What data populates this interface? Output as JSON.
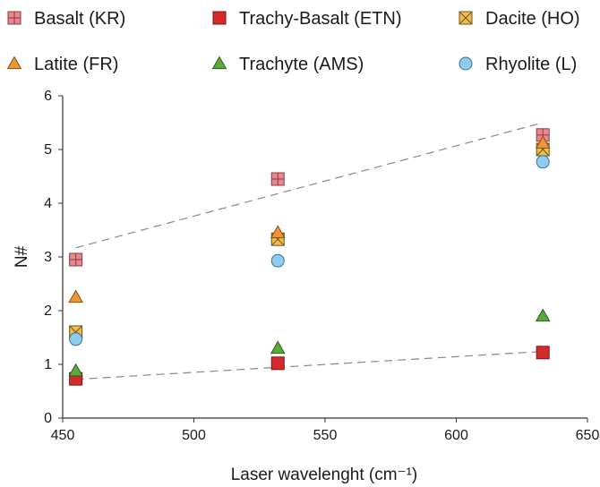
{
  "chart_data": {
    "type": "scatter",
    "xlabel": "Laser wavelenght (cm⁻¹)",
    "ylabel": "N#",
    "xlim": [
      450,
      650
    ],
    "ylim": [
      0,
      6
    ],
    "xticks": [
      450,
      500,
      550,
      600,
      650
    ],
    "yticks": [
      0,
      1,
      2,
      3,
      4,
      5,
      6
    ],
    "grid": false,
    "legend_position": "top",
    "series": [
      {
        "name": "Basalt (KR)",
        "marker": "square-grid",
        "color": "#e8878f",
        "edge": "#8a3a44",
        "x": [
          455,
          532,
          633
        ],
        "y": [
          2.95,
          4.45,
          5.27
        ]
      },
      {
        "name": "Trachy-Basalt (ETN)",
        "marker": "square",
        "color": "#d42a2a",
        "edge": "#7a1414",
        "x": [
          455,
          532,
          633
        ],
        "y": [
          0.73,
          1.02,
          1.22
        ]
      },
      {
        "name": "Dacite (HO)",
        "marker": "square-x",
        "color": "#f1bc4a",
        "edge": "#6a5420",
        "x": [
          455,
          532,
          633
        ],
        "y": [
          1.6,
          3.33,
          5.0
        ]
      },
      {
        "name": "Latite (FR)",
        "marker": "triangle",
        "color": "#ee9535",
        "edge": "#8a4d12",
        "x": [
          455,
          532,
          633
        ],
        "y": [
          2.25,
          3.45,
          5.12
        ]
      },
      {
        "name": "Trachyte (AMS)",
        "marker": "triangle",
        "color": "#5aaa3c",
        "edge": "#2c5e1c",
        "x": [
          455,
          532,
          633
        ],
        "y": [
          0.88,
          1.3,
          1.9
        ]
      },
      {
        "name": "Rhyolite (L)",
        "marker": "circle",
        "color": "#8fcdf0",
        "edge": "#3a6f92",
        "x": [
          455,
          532,
          633
        ],
        "y": [
          1.47,
          2.93,
          4.77
        ]
      }
    ],
    "trendlines": [
      {
        "x": [
          455,
          633
        ],
        "y": [
          3.17,
          5.5
        ],
        "style": "dashed",
        "color": "#888888"
      },
      {
        "x": [
          455,
          633
        ],
        "y": [
          0.72,
          1.24
        ],
        "style": "dashed",
        "color": "#888888"
      }
    ]
  }
}
